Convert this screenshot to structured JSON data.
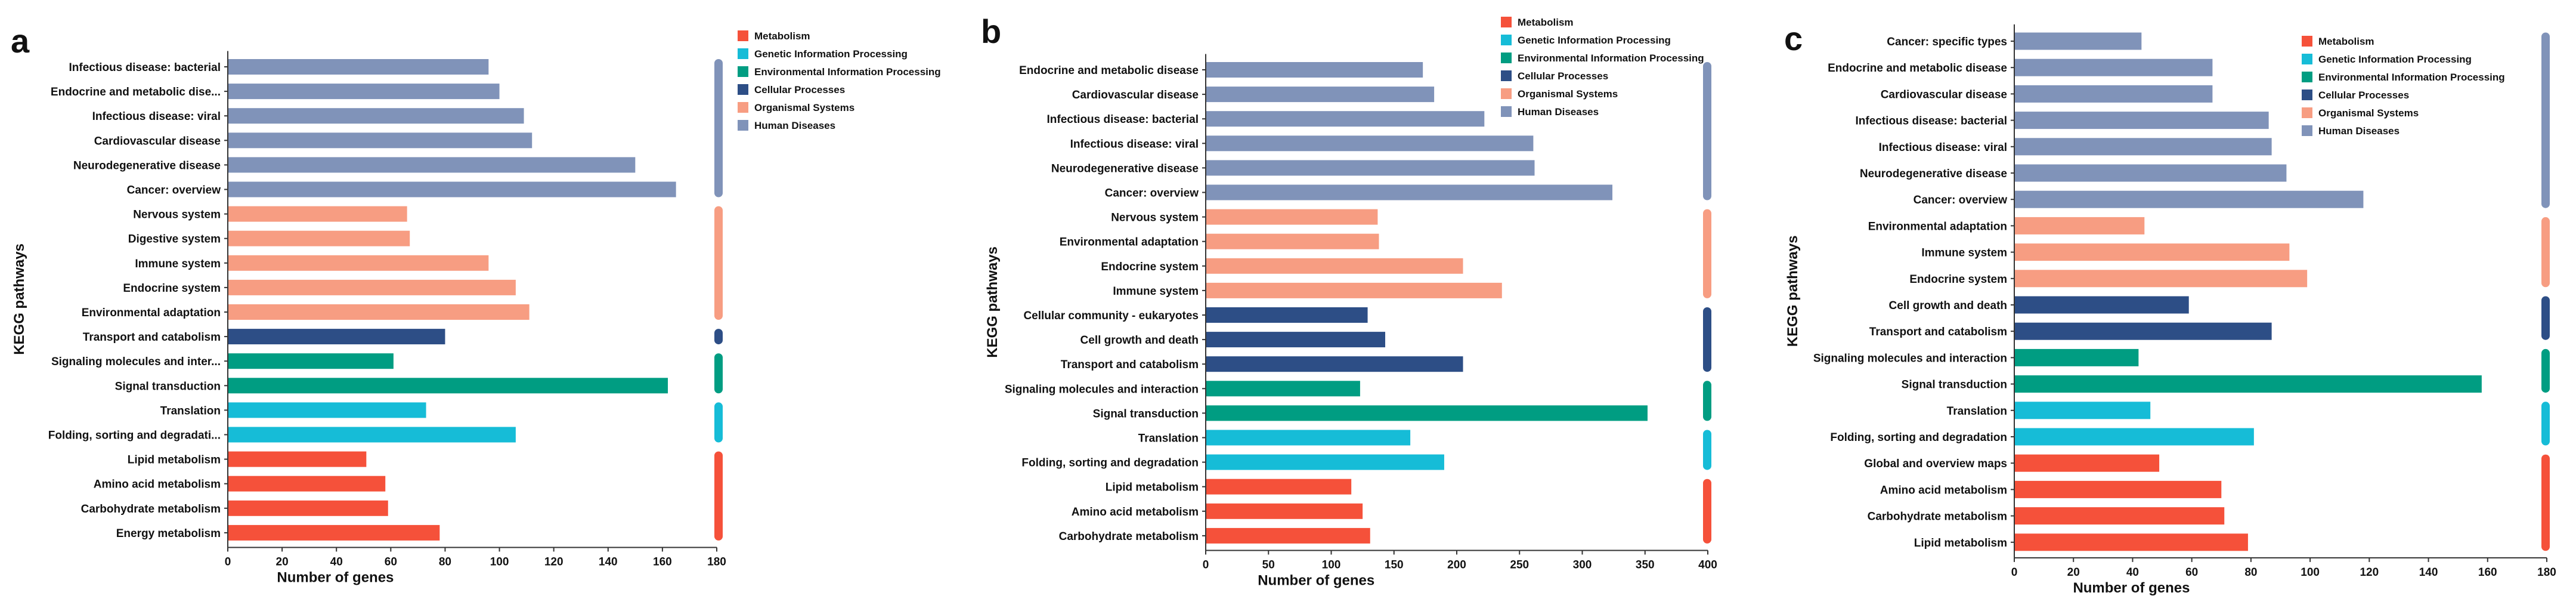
{
  "legend": {
    "items": [
      {
        "key": "metabolism",
        "label": "Metabolism",
        "color": "#F5513A"
      },
      {
        "key": "genetic",
        "label": "Genetic Information Processing",
        "color": "#16BCD7"
      },
      {
        "key": "environmental",
        "label": "Environmental Information Processing",
        "color": "#009D82"
      },
      {
        "key": "cellular",
        "label": "Cellular Processes",
        "color": "#2D4E86"
      },
      {
        "key": "organismal",
        "label": "Organismal Systems",
        "color": "#F79D82"
      },
      {
        "key": "human",
        "label": "Human Diseases",
        "color": "#8093B9"
      }
    ]
  },
  "chart_data": [
    {
      "type": "bar",
      "orientation": "horizontal",
      "panel_label": "a",
      "xlabel": "Number of genes",
      "ylabel": "KEGG pathways",
      "xlim": [
        0,
        180
      ],
      "xticks": [
        "0",
        "20",
        "40",
        "60",
        "80",
        "100",
        "120",
        "140",
        "160",
        "180"
      ],
      "categories": [
        {
          "label": "Infectious disease: bacterial",
          "value": 96,
          "group": "human"
        },
        {
          "label": "Endocrine and metabolic dise...",
          "value": 100,
          "group": "human"
        },
        {
          "label": "Infectious disease: viral",
          "value": 109,
          "group": "human"
        },
        {
          "label": "Cardiovascular disease",
          "value": 112,
          "group": "human"
        },
        {
          "label": "Neurodegenerative disease",
          "value": 150,
          "group": "human"
        },
        {
          "label": "Cancer: overview",
          "value": 165,
          "group": "human"
        },
        {
          "label": "Nervous system",
          "value": 66,
          "group": "organismal"
        },
        {
          "label": "Digestive system",
          "value": 67,
          "group": "organismal"
        },
        {
          "label": "Immune system",
          "value": 96,
          "group": "organismal"
        },
        {
          "label": "Endocrine system",
          "value": 106,
          "group": "organismal"
        },
        {
          "label": "Environmental adaptation",
          "value": 111,
          "group": "organismal"
        },
        {
          "label": "Transport and catabolism",
          "value": 80,
          "group": "cellular"
        },
        {
          "label": "Signaling molecules and inter...",
          "value": 61,
          "group": "environmental"
        },
        {
          "label": "Signal transduction",
          "value": 162,
          "group": "environmental"
        },
        {
          "label": "Translation",
          "value": 73,
          "group": "genetic"
        },
        {
          "label": "Folding, sorting and degradati...",
          "value": 106,
          "group": "genetic"
        },
        {
          "label": "Lipid metabolism",
          "value": 51,
          "group": "metabolism"
        },
        {
          "label": "Amino acid metabolism",
          "value": 58,
          "group": "metabolism"
        },
        {
          "label": "Carbohydrate metabolism",
          "value": 59,
          "group": "metabolism"
        },
        {
          "label": "Energy metabolism",
          "value": 78,
          "group": "metabolism"
        }
      ]
    },
    {
      "type": "bar",
      "orientation": "horizontal",
      "panel_label": "b",
      "xlabel": "Number of genes",
      "ylabel": "KEGG pathways",
      "xlim": [
        0,
        400
      ],
      "xticks": [
        "0",
        "50",
        "100",
        "150",
        "200",
        "250",
        "300",
        "350",
        "400"
      ],
      "categories": [
        {
          "label": "Endocrine and metabolic disease",
          "value": 173,
          "group": "human"
        },
        {
          "label": "Cardiovascular disease",
          "value": 182,
          "group": "human"
        },
        {
          "label": "Infectious disease: bacterial",
          "value": 222,
          "group": "human"
        },
        {
          "label": "Infectious disease: viral",
          "value": 261,
          "group": "human"
        },
        {
          "label": "Neurodegenerative disease",
          "value": 262,
          "group": "human"
        },
        {
          "label": "Cancer: overview",
          "value": 324,
          "group": "human"
        },
        {
          "label": "Nervous system",
          "value": 137,
          "group": "organismal"
        },
        {
          "label": "Environmental adaptation",
          "value": 138,
          "group": "organismal"
        },
        {
          "label": "Endocrine system",
          "value": 205,
          "group": "organismal"
        },
        {
          "label": "Immune system",
          "value": 236,
          "group": "organismal"
        },
        {
          "label": "Cellular community - eukaryotes",
          "value": 129,
          "group": "cellular"
        },
        {
          "label": "Cell growth and death",
          "value": 143,
          "group": "cellular"
        },
        {
          "label": "Transport and catabolism",
          "value": 205,
          "group": "cellular"
        },
        {
          "label": "Signaling molecules and interaction",
          "value": 123,
          "group": "environmental"
        },
        {
          "label": "Signal transduction",
          "value": 352,
          "group": "environmental"
        },
        {
          "label": "Translation",
          "value": 163,
          "group": "genetic"
        },
        {
          "label": "Folding, sorting and degradation",
          "value": 190,
          "group": "genetic"
        },
        {
          "label": "Lipid metabolism",
          "value": 116,
          "group": "metabolism"
        },
        {
          "label": "Amino acid metabolism",
          "value": 125,
          "group": "metabolism"
        },
        {
          "label": "Carbohydrate metabolism",
          "value": 131,
          "group": "metabolism"
        }
      ]
    },
    {
      "type": "bar",
      "orientation": "horizontal",
      "panel_label": "c",
      "xlabel": "Number of genes",
      "ylabel": "KEGG pathways",
      "xlim": [
        0,
        180
      ],
      "xticks": [
        "0",
        "20",
        "40",
        "60",
        "80",
        "100",
        "120",
        "140",
        "160",
        "180"
      ],
      "categories": [
        {
          "label": "Cancer: specific types",
          "value": 43,
          "group": "human"
        },
        {
          "label": "Endocrine and metabolic disease",
          "value": 67,
          "group": "human"
        },
        {
          "label": "Cardiovascular disease",
          "value": 67,
          "group": "human"
        },
        {
          "label": "Infectious disease: bacterial",
          "value": 86,
          "group": "human"
        },
        {
          "label": "Infectious disease: viral",
          "value": 87,
          "group": "human"
        },
        {
          "label": "Neurodegenerative disease",
          "value": 92,
          "group": "human"
        },
        {
          "label": "Cancer: overview",
          "value": 118,
          "group": "human"
        },
        {
          "label": "Environmental adaptation",
          "value": 44,
          "group": "organismal"
        },
        {
          "label": "Immune system",
          "value": 93,
          "group": "organismal"
        },
        {
          "label": "Endocrine system",
          "value": 99,
          "group": "organismal"
        },
        {
          "label": "Cell growth and death",
          "value": 59,
          "group": "cellular"
        },
        {
          "label": "Transport and catabolism",
          "value": 87,
          "group": "cellular"
        },
        {
          "label": "Signaling molecules and interaction",
          "value": 42,
          "group": "environmental"
        },
        {
          "label": "Signal transduction",
          "value": 158,
          "group": "environmental"
        },
        {
          "label": "Translation",
          "value": 46,
          "group": "genetic"
        },
        {
          "label": "Folding, sorting and degradation",
          "value": 81,
          "group": "genetic"
        },
        {
          "label": "Global and overview maps",
          "value": 49,
          "group": "metabolism"
        },
        {
          "label": "Amino acid metabolism",
          "value": 70,
          "group": "metabolism"
        },
        {
          "label": "Carbohydrate metabolism",
          "value": 71,
          "group": "metabolism"
        },
        {
          "label": "Lipid metabolism",
          "value": 79,
          "group": "metabolism"
        }
      ]
    }
  ]
}
